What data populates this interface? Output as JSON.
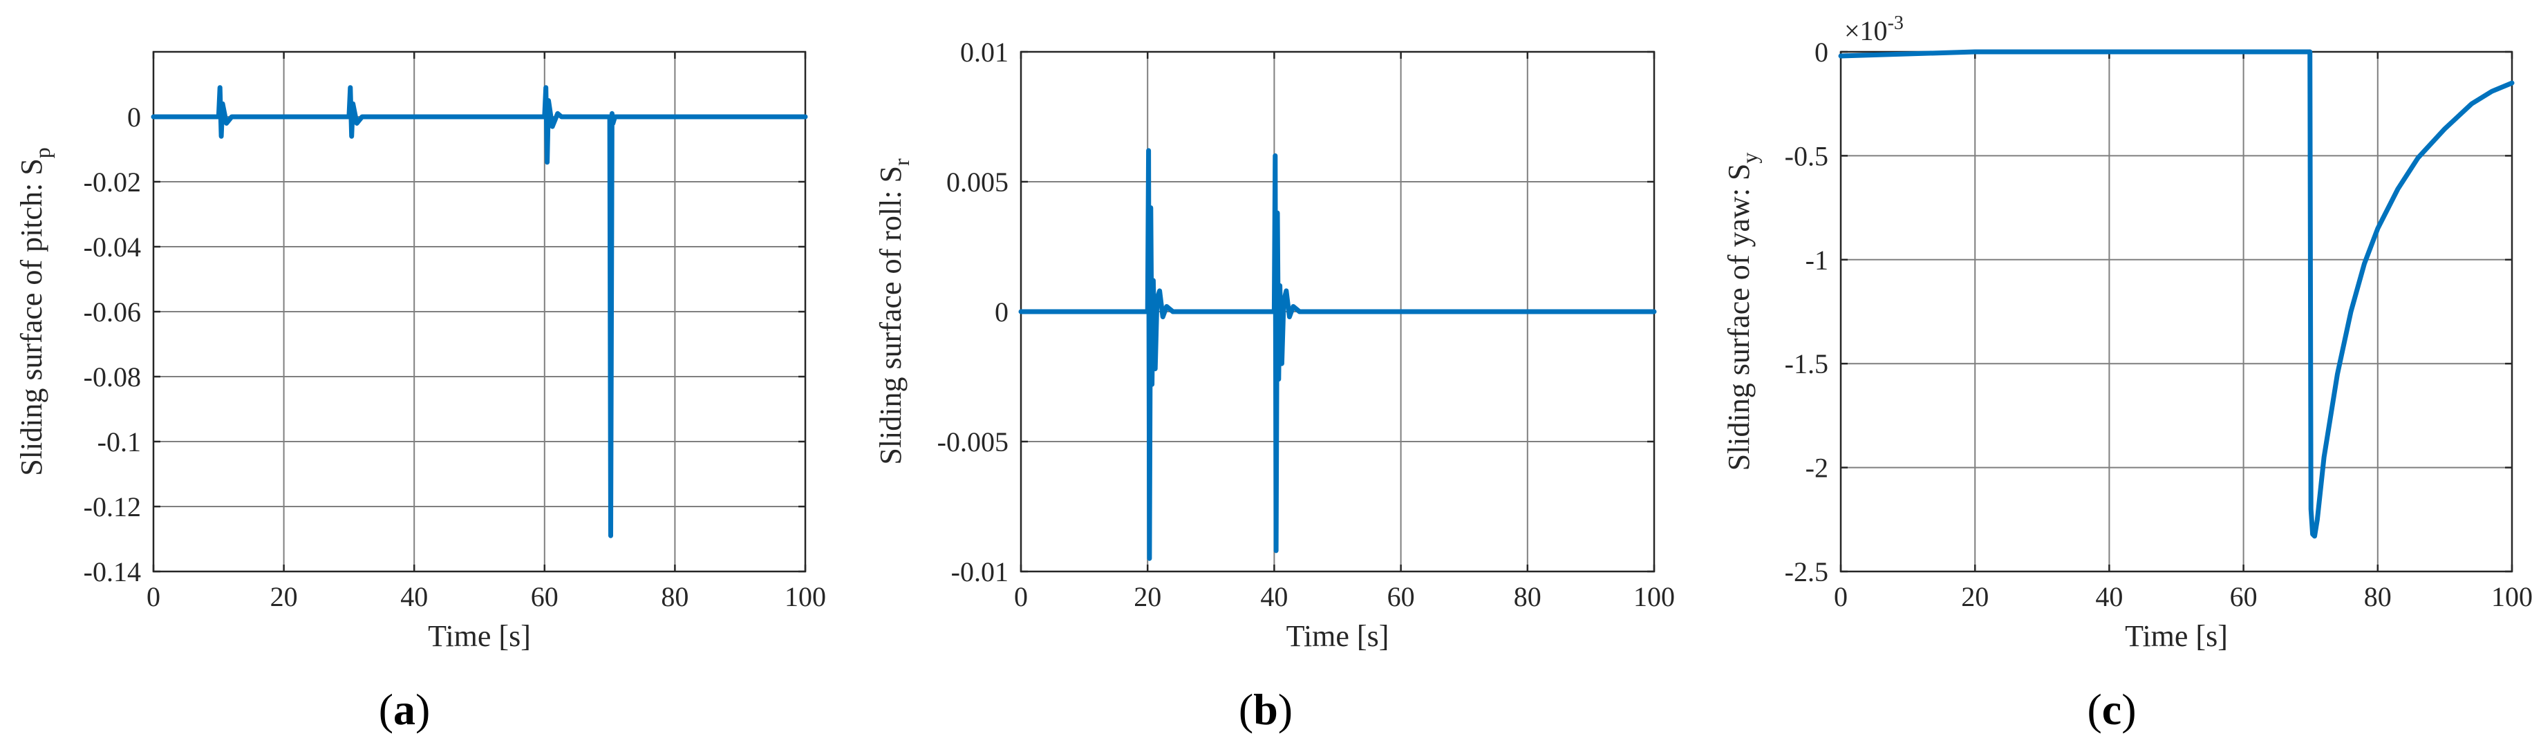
{
  "colors": {
    "series": "#0072BD"
  },
  "chart_data": [
    {
      "type": "line",
      "subtitle_letter": "a",
      "xlabel": "Time [s]",
      "ylabel": "Sliding surface of pitch: S",
      "ylabel_sub": "p",
      "exponent_label": "",
      "xlim": [
        0,
        100
      ],
      "ylim": [
        -0.14,
        0.02
      ],
      "xticks": [
        0,
        20,
        40,
        60,
        80,
        100
      ],
      "yticks": [
        -0.14,
        -0.12,
        -0.1,
        -0.08,
        -0.06,
        -0.04,
        -0.02,
        0
      ],
      "xtick_labels": [
        "0",
        "20",
        "40",
        "60",
        "80",
        "100"
      ],
      "ytick_labels": [
        "-0.14",
        "-0.12",
        "-0.1",
        "-0.08",
        "-0.06",
        "-0.04",
        "-0.02",
        "0"
      ],
      "grid": true,
      "series": [
        {
          "x": [
            0,
            10,
            10.2,
            10.4,
            10.6,
            11.2,
            12,
            30,
            30.2,
            30.4,
            30.6,
            31.2,
            32,
            60,
            60.2,
            60.4,
            60.6,
            61.2,
            62,
            62.6,
            70,
            70.15,
            70.35,
            70.5,
            70.8,
            100
          ],
          "y": [
            0,
            0,
            0.009,
            -0.006,
            0.004,
            -0.002,
            0,
            0,
            0.009,
            -0.006,
            0.004,
            -0.002,
            0,
            0,
            0.009,
            -0.014,
            0.005,
            -0.003,
            0.001,
            0,
            0,
            -0.129,
            0.001,
            -0.002,
            0,
            0
          ]
        }
      ]
    },
    {
      "type": "line",
      "subtitle_letter": "b",
      "xlabel": "Time [s]",
      "ylabel": "Sliding surface of roll: S",
      "ylabel_sub": "r",
      "exponent_label": "",
      "xlim": [
        0,
        100
      ],
      "ylim": [
        -0.01,
        0.01
      ],
      "xticks": [
        0,
        20,
        40,
        60,
        80,
        100
      ],
      "yticks": [
        -0.01,
        -0.005,
        0,
        0.005,
        0.01
      ],
      "xtick_labels": [
        "0",
        "20",
        "40",
        "60",
        "80",
        "100"
      ],
      "ytick_labels": [
        "-0.01",
        "-0.005",
        "0",
        "0.005",
        "0.01"
      ],
      "grid": true,
      "series": [
        {
          "x": [
            0,
            20,
            20.15,
            20.3,
            20.5,
            20.7,
            20.9,
            21.2,
            21.5,
            21.9,
            22.4,
            23,
            24,
            40,
            40.15,
            40.3,
            40.5,
            40.7,
            40.9,
            41.2,
            41.5,
            41.9,
            42.4,
            43,
            44,
            100
          ],
          "y": [
            0,
            0,
            0.0062,
            -0.0095,
            0.004,
            -0.0028,
            0.0012,
            -0.0022,
            0.0005,
            0.0008,
            -0.0002,
            0.0002,
            0,
            0,
            0.006,
            -0.0092,
            0.0038,
            -0.0026,
            0.001,
            -0.002,
            0.0004,
            0.0008,
            -0.0002,
            0.0002,
            0,
            0
          ]
        }
      ]
    },
    {
      "type": "line",
      "subtitle_letter": "c",
      "xlabel": "Time [s]",
      "ylabel": "Sliding surface of yaw: S",
      "ylabel_sub": "y",
      "exponent_label": "×10",
      "exponent_power": "-3",
      "xlim": [
        0,
        100
      ],
      "ylim": [
        -2.5,
        0
      ],
      "xticks": [
        0,
        20,
        40,
        60,
        80,
        100
      ],
      "yticks": [
        -2.5,
        -2,
        -1.5,
        -1,
        -0.5,
        0
      ],
      "xtick_labels": [
        "0",
        "20",
        "40",
        "60",
        "80",
        "100"
      ],
      "ytick_labels": [
        "-2.5",
        "-2",
        "-1.5",
        "-1",
        "-0.5",
        "0"
      ],
      "grid": true,
      "series": [
        {
          "x": [
            0,
            20,
            69.9,
            70.05,
            70.3,
            70.6,
            71,
            72,
            74,
            76,
            78,
            80,
            83,
            86,
            90,
            94,
            97,
            100
          ],
          "y": [
            -0.02,
            0,
            0,
            -2.2,
            -2.32,
            -2.33,
            -2.25,
            -1.95,
            -1.55,
            -1.25,
            -1.02,
            -0.85,
            -0.66,
            -0.51,
            -0.37,
            -0.25,
            -0.19,
            -0.15
          ]
        }
      ]
    }
  ]
}
